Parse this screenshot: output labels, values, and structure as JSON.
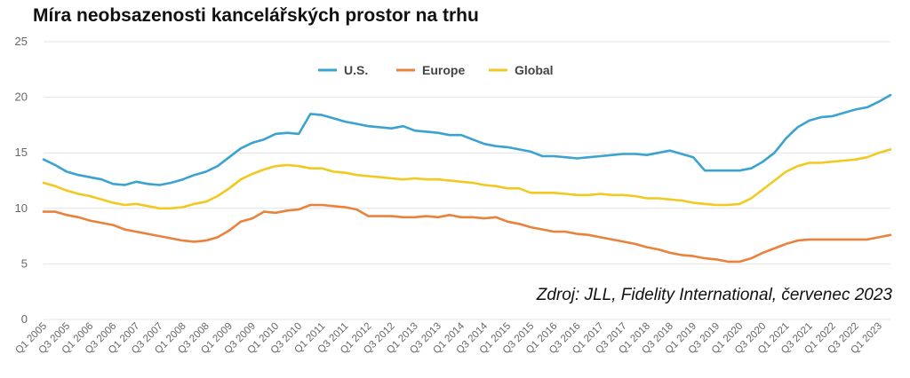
{
  "chart_data": {
    "type": "line",
    "title": "Míra neobsazenosti kancelářských prostor na trhu",
    "source": "Zdroj: JLL, Fidelity International, červenec 2023",
    "ylim": [
      0,
      25
    ],
    "yticks": [
      0,
      5,
      10,
      15,
      20,
      25
    ],
    "grid": true,
    "legend_position": "top-center",
    "x": [
      "2005Q1",
      "2005Q2",
      "2005Q3",
      "2005Q4",
      "2006Q1",
      "2006Q2",
      "2006Q3",
      "2006Q4",
      "2007Q1",
      "2007Q2",
      "2007Q3",
      "2007Q4",
      "2008Q1",
      "2008Q2",
      "2008Q3",
      "2008Q4",
      "2009Q1",
      "2009Q2",
      "2009Q3",
      "2009Q4",
      "2010Q1",
      "2010Q2",
      "2010Q3",
      "2010Q4",
      "2011Q1",
      "2011Q2",
      "2011Q3",
      "2011Q4",
      "2012Q1",
      "2012Q2",
      "2012Q3",
      "2012Q4",
      "2013Q1",
      "2013Q2",
      "2013Q3",
      "2013Q4",
      "2014Q1",
      "2014Q2",
      "2014Q3",
      "2014Q4",
      "2015Q1",
      "2015Q2",
      "2015Q3",
      "2015Q4",
      "2016Q1",
      "2016Q2",
      "2016Q3",
      "2016Q4",
      "2017Q1",
      "2017Q2",
      "2017Q3",
      "2017Q4",
      "2018Q1",
      "2018Q2",
      "2018Q3",
      "2018Q4",
      "2019Q1",
      "2019Q2",
      "2019Q3",
      "2019Q4",
      "2020Q1",
      "2020Q2",
      "2020Q3",
      "2020Q4",
      "2021Q1",
      "2021Q2",
      "2021Q3",
      "2021Q4",
      "2022Q1",
      "2022Q2",
      "2022Q3",
      "2022Q4",
      "2023Q1",
      "2023Q2"
    ],
    "tick_labels": [
      "Q1 2005",
      "Q3 2005",
      "Q1 2006",
      "Q3 2006",
      "Q1 2007",
      "Q3 2007",
      "Q1 2008",
      "Q3 2008",
      "Q1 2009",
      "Q3 2009",
      "Q1 2010",
      "Q3 2010",
      "Q1 2011",
      "Q3 2011",
      "Q1 2012",
      "Q3 2012",
      "Q1 2013",
      "Q3 2013",
      "Q1 2014",
      "Q3 2014",
      "Q1 2015",
      "Q3 2015",
      "Q1 2016",
      "Q3 2016",
      "Q1 2017",
      "Q3 2017",
      "Q1 2018",
      "Q3 2018",
      "Q1 2019",
      "Q3 2019",
      "Q1 2020",
      "Q3 2020",
      "Q1 2021",
      "Q3 2021",
      "Q1 2022",
      "Q3 2022",
      "Q1 2023"
    ],
    "series": [
      {
        "name": "U.S.",
        "color": "#3aa3cf",
        "values": [
          14.4,
          13.9,
          13.3,
          13.0,
          12.8,
          12.6,
          12.2,
          12.1,
          12.4,
          12.2,
          12.1,
          12.3,
          12.6,
          13.0,
          13.3,
          13.8,
          14.6,
          15.4,
          15.9,
          16.2,
          16.7,
          16.8,
          16.7,
          18.5,
          18.4,
          18.1,
          17.8,
          17.6,
          17.4,
          17.3,
          17.2,
          17.4,
          17.0,
          16.9,
          16.8,
          16.6,
          16.6,
          16.2,
          15.8,
          15.6,
          15.5,
          15.3,
          15.1,
          14.7,
          14.7,
          14.6,
          14.5,
          14.6,
          14.7,
          14.8,
          14.9,
          14.9,
          14.8,
          15.0,
          15.2,
          14.9,
          14.6,
          13.4,
          13.4,
          13.4,
          13.4,
          13.6,
          14.2,
          15.0,
          16.3,
          17.3,
          17.9,
          18.2,
          18.3,
          18.6,
          18.9,
          19.1,
          19.6,
          20.2
        ]
      },
      {
        "name": "Europe",
        "color": "#e8823c",
        "values": [
          9.7,
          9.7,
          9.4,
          9.2,
          8.9,
          8.7,
          8.5,
          8.1,
          7.9,
          7.7,
          7.5,
          7.3,
          7.1,
          7.0,
          7.1,
          7.4,
          8.0,
          8.8,
          9.1,
          9.7,
          9.6,
          9.8,
          9.9,
          10.3,
          10.3,
          10.2,
          10.1,
          9.9,
          9.3,
          9.3,
          9.3,
          9.2,
          9.2,
          9.3,
          9.2,
          9.4,
          9.2,
          9.2,
          9.1,
          9.2,
          8.8,
          8.6,
          8.3,
          8.1,
          7.9,
          7.9,
          7.7,
          7.6,
          7.4,
          7.2,
          7.0,
          6.8,
          6.5,
          6.3,
          6.0,
          5.8,
          5.7,
          5.5,
          5.4,
          5.2,
          5.2,
          5.5,
          6.0,
          6.4,
          6.8,
          7.1,
          7.2,
          7.2,
          7.2,
          7.2,
          7.2,
          7.2,
          7.4,
          7.6
        ]
      },
      {
        "name": "Global",
        "color": "#f1c91f",
        "values": [
          12.3,
          12.0,
          11.6,
          11.3,
          11.1,
          10.8,
          10.5,
          10.3,
          10.4,
          10.2,
          10.0,
          10.0,
          10.1,
          10.4,
          10.6,
          11.1,
          11.8,
          12.6,
          13.1,
          13.5,
          13.8,
          13.9,
          13.8,
          13.6,
          13.6,
          13.3,
          13.2,
          13.0,
          12.9,
          12.8,
          12.7,
          12.6,
          12.7,
          12.6,
          12.6,
          12.5,
          12.4,
          12.3,
          12.1,
          12.0,
          11.8,
          11.8,
          11.4,
          11.4,
          11.4,
          11.3,
          11.2,
          11.2,
          11.3,
          11.2,
          11.2,
          11.1,
          10.9,
          10.9,
          10.8,
          10.7,
          10.5,
          10.4,
          10.3,
          10.3,
          10.4,
          10.9,
          11.7,
          12.5,
          13.3,
          13.8,
          14.1,
          14.1,
          14.2,
          14.3,
          14.4,
          14.6,
          15.0,
          15.3
        ]
      }
    ]
  }
}
